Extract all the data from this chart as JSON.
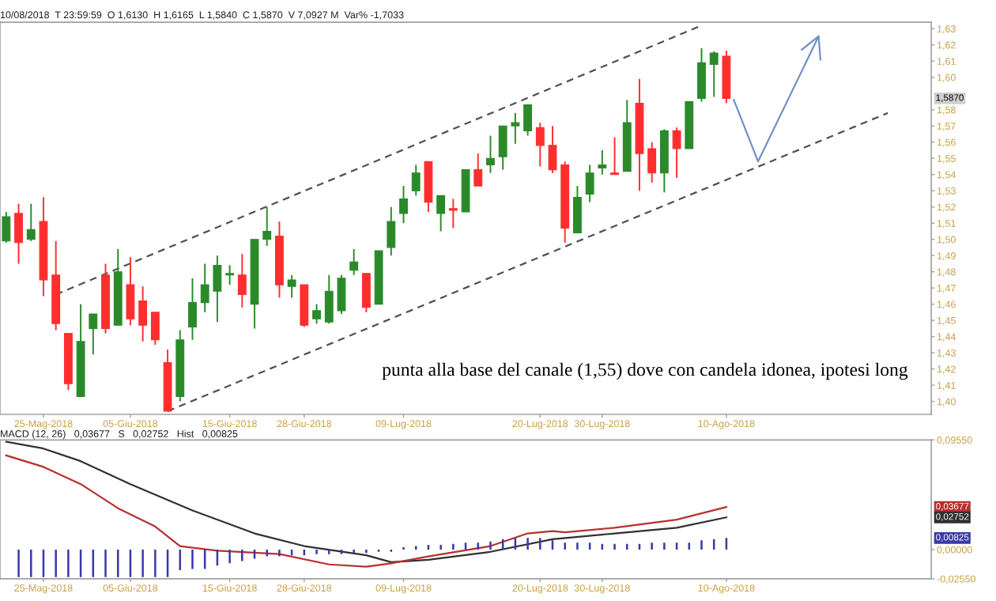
{
  "chart_data": [
    {
      "type": "candlestick",
      "subtitle": "10/08/2018  T 23:59:59  O 1,6130  H 1,6165  L 1,5840  C 1,5870  V 7,0927 M  Var% -1,7033",
      "categories": [
        null,
        null,
        null,
        "25-Mag-2018",
        null,
        null,
        null,
        null,
        null,
        null,
        "05-Giu-2018",
        null,
        null,
        null,
        null,
        null,
        null,
        null,
        "15-Giu-2018",
        null,
        null,
        null,
        null,
        null,
        "28-Giu-2018",
        null,
        null,
        null,
        null,
        null,
        null,
        null,
        "09-Lug-2018",
        null,
        null,
        null,
        null,
        null,
        null,
        null,
        null,
        null,
        null,
        "20-Lug-2018",
        null,
        null,
        null,
        null,
        "30-Lug-2018",
        null,
        null,
        null,
        null,
        null,
        null,
        null,
        null,
        null,
        "10-Ago-2018",
        null,
        null,
        null,
        null,
        null,
        null,
        null,
        null,
        null,
        null,
        null,
        null,
        null,
        null,
        null,
        null
      ],
      "ohlc": [
        [
          1.499,
          1.517,
          1.498,
          1.514
        ],
        [
          1.516,
          1.522,
          1.485,
          1.498
        ],
        [
          1.5,
          1.522,
          1.499,
          1.506
        ],
        [
          1.511,
          1.526,
          1.465,
          1.475
        ],
        [
          1.478,
          1.499,
          1.444,
          1.448
        ],
        [
          1.442,
          1.442,
          1.407,
          1.411
        ],
        [
          1.403,
          1.46,
          1.403,
          1.437
        ],
        [
          1.445,
          1.454,
          1.429,
          1.454
        ],
        [
          1.478,
          1.485,
          1.442,
          1.445
        ],
        [
          1.447,
          1.494,
          1.447,
          1.48
        ],
        [
          1.472,
          1.489,
          1.447,
          1.451
        ],
        [
          1.462,
          1.471,
          1.437,
          1.447
        ],
        [
          1.455,
          1.455,
          1.435,
          1.438
        ],
        [
          1.424,
          1.432,
          1.394,
          1.394
        ],
        [
          1.403,
          1.444,
          1.4,
          1.438
        ],
        [
          1.446,
          1.476,
          1.438,
          1.461
        ],
        [
          1.461,
          1.485,
          1.455,
          1.472
        ],
        [
          1.468,
          1.49,
          1.449,
          1.484
        ],
        [
          1.478,
          1.484,
          1.472,
          1.479
        ],
        [
          1.478,
          1.491,
          1.458,
          1.466
        ],
        [
          1.46,
          1.5,
          1.445,
          1.5
        ],
        [
          1.5,
          1.52,
          1.496,
          1.505
        ],
        [
          1.502,
          1.511,
          1.464,
          1.472
        ],
        [
          1.471,
          1.478,
          1.464,
          1.475
        ],
        [
          1.472,
          1.472,
          1.446,
          1.447
        ],
        [
          1.451,
          1.46,
          1.448,
          1.456
        ],
        [
          1.449,
          1.478,
          1.448,
          1.468
        ],
        [
          1.456,
          1.478,
          1.454,
          1.476
        ],
        [
          1.481,
          1.494,
          1.478,
          1.486
        ],
        [
          1.479,
          1.479,
          1.455,
          1.458
        ],
        [
          1.46,
          1.493,
          1.46,
          1.493
        ],
        [
          1.495,
          1.52,
          1.49,
          1.511
        ],
        [
          1.516,
          1.533,
          1.51,
          1.525
        ],
        [
          1.53,
          1.546,
          1.527,
          1.541
        ],
        [
          1.548,
          1.548,
          1.517,
          1.523
        ],
        [
          1.516,
          1.527,
          1.505,
          1.527
        ],
        [
          1.519,
          1.525,
          1.507,
          1.518
        ],
        [
          1.517,
          1.543,
          1.517,
          1.543
        ],
        [
          1.543,
          1.553,
          1.533,
          1.533
        ],
        [
          1.546,
          1.564,
          1.541,
          1.55
        ],
        [
          1.551,
          1.57,
          1.543,
          1.57
        ],
        [
          1.57,
          1.578,
          1.559,
          1.572
        ],
        [
          1.567,
          1.583,
          1.564,
          1.583
        ],
        [
          1.569,
          1.572,
          1.545,
          1.558
        ],
        [
          1.558,
          1.57,
          1.541,
          1.543
        ],
        [
          1.546,
          1.548,
          1.498,
          1.507
        ],
        [
          1.504,
          1.533,
          1.504,
          1.526
        ],
        [
          1.528,
          1.546,
          1.523,
          1.541
        ],
        [
          1.544,
          1.555,
          1.54,
          1.546
        ],
        [
          1.541,
          1.563,
          1.54,
          1.54
        ],
        [
          1.542,
          1.586,
          1.542,
          1.572
        ],
        [
          1.584,
          1.599,
          1.53,
          1.553
        ],
        [
          1.556,
          1.56,
          1.535,
          1.541
        ],
        [
          1.541,
          1.568,
          1.529,
          1.567
        ],
        [
          1.567,
          1.569,
          1.538,
          1.556
        ],
        [
          1.556,
          1.585,
          1.556,
          1.585
        ],
        [
          1.587,
          1.618,
          1.585,
          1.609
        ],
        [
          1.608,
          1.616,
          1.588,
          1.615
        ],
        [
          1.613,
          1.6165,
          1.584,
          1.587
        ],
        null,
        null,
        null,
        null,
        null,
        null,
        null,
        null,
        null,
        null,
        null,
        null,
        null,
        null,
        null,
        null
      ],
      "colors": [
        "#2a8a2a",
        "#ff2e2e",
        "#2a8a2a",
        "#ff2e2e",
        "#ff2e2e",
        "#ff2e2e",
        "#2a8a2a",
        "#2a8a2a",
        "#ff2e2e",
        "#2a8a2a",
        "#ff2e2e",
        "#ff2e2e",
        "#ff2e2e",
        "#ff2e2e",
        "#2a8a2a",
        "#2a8a2a",
        "#2a8a2a",
        "#2a8a2a",
        "#2a8a2a",
        "#ff2e2e",
        "#2a8a2a",
        "#2a8a2a",
        "#ff2e2e",
        "#2a8a2a",
        "#ff2e2e",
        "#2a8a2a",
        "#2a8a2a",
        "#2a8a2a",
        "#2a8a2a",
        "#ff2e2e",
        "#2a8a2a",
        "#2a8a2a",
        "#2a8a2a",
        "#2a8a2a",
        "#ff2e2e",
        "#2a8a2a",
        "#ff2e2e",
        "#2a8a2a",
        "#ff2e2e",
        "#2a8a2a",
        "#2a8a2a",
        "#2a8a2a",
        "#2a8a2a",
        "#ff2e2e",
        "#ff2e2e",
        "#ff2e2e",
        "#2a8a2a",
        "#2a8a2a",
        "#2a8a2a",
        "#ff2e2e",
        "#2a8a2a",
        "#ff2e2e",
        "#ff2e2e",
        "#2a8a2a",
        "#ff2e2e",
        "#2a8a2a",
        "#2a8a2a",
        "#2a8a2a",
        "#ff2e2e",
        null,
        null,
        null,
        null,
        null,
        null,
        null,
        null,
        null,
        null,
        null,
        null,
        null,
        null,
        null,
        null
      ],
      "series": [
        {
          "type": "line",
          "line_style": "dashed",
          "color": "#505050",
          "values": [
            null,
            null,
            null,
            null,
            1.466,
            null,
            null,
            null,
            null,
            null,
            null,
            null,
            null,
            null,
            null,
            null,
            null,
            null,
            null,
            null,
            null,
            null,
            null,
            null,
            null,
            null,
            null,
            null,
            null,
            null,
            null,
            null,
            null,
            null,
            null,
            null,
            null,
            null,
            null,
            null,
            null,
            null,
            null,
            null,
            null,
            null,
            null,
            null,
            null,
            null,
            null,
            null,
            null,
            null,
            null,
            null,
            1.632,
            null,
            null,
            null,
            null,
            null,
            null,
            null,
            null,
            null,
            null,
            null,
            null,
            null,
            null,
            null,
            null,
            null,
            null
          ]
        },
        {
          "type": "line",
          "line_style": "dashed",
          "color": "#505050",
          "values": [
            null,
            null,
            null,
            null,
            null,
            null,
            null,
            null,
            null,
            null,
            null,
            null,
            null,
            1.394,
            null,
            null,
            null,
            null,
            null,
            null,
            null,
            null,
            null,
            null,
            null,
            null,
            null,
            null,
            null,
            null,
            null,
            null,
            null,
            null,
            null,
            null,
            null,
            null,
            null,
            null,
            null,
            null,
            null,
            null,
            null,
            null,
            null,
            null,
            null,
            null,
            null,
            null,
            null,
            null,
            null,
            null,
            null,
            null,
            null,
            null,
            null,
            null,
            null,
            null,
            null,
            null,
            null,
            null,
            null,
            null,
            null,
            1.578,
            null,
            null,
            null
          ]
        }
      ],
      "ylim": [
        1.392,
        1.634
      ],
      "yticks": [
        {
          "value": 1.4,
          "label": "1,40"
        },
        {
          "value": 1.41,
          "label": "1,41"
        },
        {
          "value": 1.42,
          "label": "1,42"
        },
        {
          "value": 1.43,
          "label": "1,43"
        },
        {
          "value": 1.44,
          "label": "1,44"
        },
        {
          "value": 1.45,
          "label": "1,45"
        },
        {
          "value": 1.46,
          "label": "1,46"
        },
        {
          "value": 1.47,
          "label": "1,47"
        },
        {
          "value": 1.48,
          "label": "1,48"
        },
        {
          "value": 1.49,
          "label": "1,49"
        },
        {
          "value": 1.5,
          "label": "1,50"
        },
        {
          "value": 1.51,
          "label": "1,51"
        },
        {
          "value": 1.52,
          "label": "1,52"
        },
        {
          "value": 1.53,
          "label": "1,53"
        },
        {
          "value": 1.54,
          "label": "1,54"
        },
        {
          "value": 1.55,
          "label": "1,55"
        },
        {
          "value": 1.56,
          "label": "1,56"
        },
        {
          "value": 1.57,
          "label": "1,57"
        },
        {
          "value": 1.58,
          "label": "1,58"
        },
        {
          "value": 1.6,
          "label": "1,60"
        },
        {
          "value": 1.61,
          "label": "1,61"
        },
        {
          "value": 1.62,
          "label": "1,62"
        },
        {
          "value": 1.63,
          "label": "1,63"
        }
      ],
      "annotations": [
        "punta alla base del canale (1,55) dove con candela idonea, ipotesi long",
        {
          "text": "1,5870",
          "y": 1.587
        }
      ],
      "tick_labels": true
    },
    {
      "type": "line",
      "subtitle": "MACD (12, 26)   0,03677   S   0,02752   Hist   0,00825",
      "categories": [
        null,
        null,
        null,
        "25-Mag-2018",
        null,
        null,
        null,
        null,
        null,
        null,
        "05-Giu-2018",
        null,
        null,
        null,
        null,
        null,
        null,
        null,
        "15-Giu-2018",
        null,
        null,
        null,
        null,
        null,
        "28-Giu-2018",
        null,
        null,
        null,
        null,
        null,
        null,
        null,
        "09-Lug-2018",
        null,
        null,
        null,
        null,
        null,
        null,
        null,
        null,
        null,
        null,
        "20-Lug-2018",
        null,
        null,
        null,
        null,
        "30-Lug-2018",
        null,
        null,
        null,
        null,
        null,
        null,
        null,
        null,
        null,
        "10-Ago-2018",
        null,
        null,
        null,
        null,
        null,
        null,
        null,
        null,
        null,
        null,
        null,
        null,
        null,
        null,
        null,
        null
      ],
      "series": [
        {
          "type": "bar",
          "color": "#3a3aa8",
          "values": [
            null,
            -0.024,
            -0.024,
            -0.024,
            -0.024,
            -0.024,
            -0.024,
            -0.024,
            -0.024,
            -0.024,
            -0.024,
            -0.024,
            -0.024,
            -0.024,
            -0.018,
            -0.017,
            -0.017,
            -0.014,
            -0.012,
            -0.01,
            -0.008,
            -0.006,
            -0.006,
            -0.005,
            -0.005,
            -0.004,
            -0.004,
            -0.004,
            -0.003,
            -0.003,
            -0.002,
            -0.002,
            0.002,
            0.003,
            0.004,
            0.004,
            0.005,
            0.006,
            0.006,
            0.007,
            0.009,
            0.01,
            0.01,
            0.01,
            0.008,
            0.006,
            0.006,
            0.006,
            0.005,
            0.005,
            0.005,
            0.005,
            0.006,
            0.006,
            0.006,
            0.006,
            0.008,
            0.009,
            0.01,
            null,
            null,
            null,
            null,
            null,
            null,
            null,
            null,
            null,
            null,
            null,
            null,
            null,
            null,
            null,
            null
          ]
        },
        {
          "type": "line",
          "color": "#303030",
          "values": [
            0.094,
            null,
            null,
            0.088,
            null,
            null,
            0.077,
            null,
            null,
            null,
            0.057,
            null,
            null,
            null,
            null,
            0.034,
            null,
            null,
            null,
            null,
            0.014,
            null,
            null,
            null,
            0.003,
            null,
            null,
            null,
            null,
            -0.005,
            null,
            -0.011,
            null,
            null,
            -0.009,
            null,
            null,
            null,
            null,
            -0.002,
            null,
            null,
            null,
            null,
            0.009,
            null,
            null,
            null,
            null,
            0.014,
            null,
            null,
            null,
            null,
            0.019,
            null,
            null,
            null,
            0.028,
            null,
            null,
            null,
            null,
            null,
            null,
            null,
            null,
            null,
            null,
            null,
            null,
            null,
            null,
            null,
            null
          ]
        },
        {
          "type": "line",
          "color": "#b83030",
          "values": [
            0.082,
            null,
            null,
            0.072,
            null,
            null,
            0.057,
            null,
            null,
            0.036,
            null,
            null,
            0.02,
            null,
            0.003,
            null,
            null,
            -0.001,
            null,
            null,
            null,
            null,
            -0.004,
            null,
            null,
            null,
            -0.013,
            null,
            null,
            -0.015,
            null,
            -0.012,
            null,
            null,
            -0.006,
            null,
            null,
            null,
            null,
            0.003,
            null,
            null,
            0.014,
            null,
            0.016,
            0.015,
            null,
            null,
            null,
            0.019,
            null,
            null,
            null,
            null,
            0.026,
            null,
            null,
            null,
            0.037,
            null,
            null,
            null,
            null,
            null,
            null,
            null,
            null,
            null,
            null,
            null,
            null,
            null,
            null,
            null,
            null
          ]
        }
      ],
      "annotations": [
        "0,03677",
        "0,02752",
        "0,00825"
      ],
      "ylim": [
        -0.0255,
        0.0955
      ],
      "yticks": [
        {
          "value": 0.0955,
          "label": "0,09550"
        },
        {
          "value": 0,
          "label": "0,00000"
        },
        {
          "value": -0.0255,
          "label": "-0,02550"
        }
      ],
      "tick_labels": true
    }
  ]
}
